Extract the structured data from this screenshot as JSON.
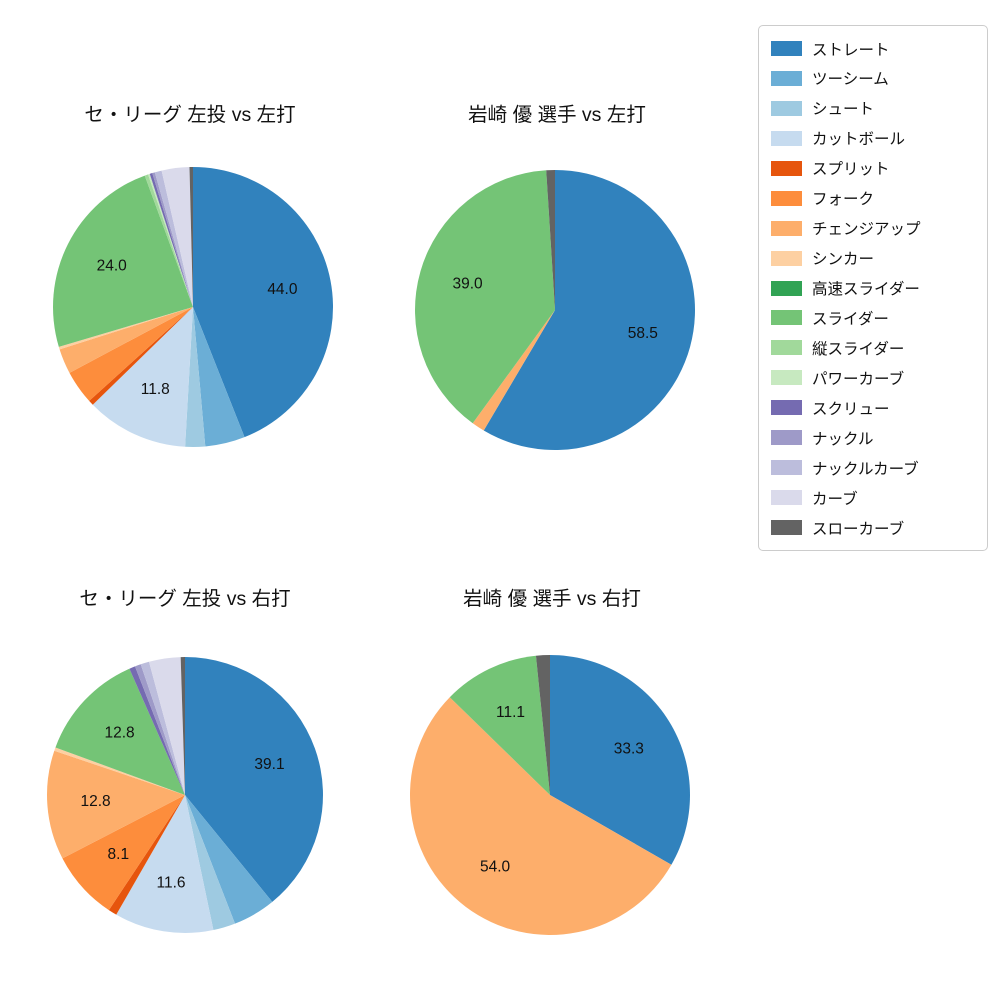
{
  "pitch_types": [
    {
      "label": "ストレート",
      "color": "#3182bd"
    },
    {
      "label": "ツーシーム",
      "color": "#6baed6"
    },
    {
      "label": "シュート",
      "color": "#9ecae1"
    },
    {
      "label": "カットボール",
      "color": "#c6dbef"
    },
    {
      "label": "スプリット",
      "color": "#e6550d"
    },
    {
      "label": "フォーク",
      "color": "#fd8d3c"
    },
    {
      "label": "チェンジアップ",
      "color": "#fdae6b"
    },
    {
      "label": "シンカー",
      "color": "#fdd0a2"
    },
    {
      "label": "高速スライダー",
      "color": "#31a354"
    },
    {
      "label": "スライダー",
      "color": "#74c476"
    },
    {
      "label": "縦スライダー",
      "color": "#a1d99b"
    },
    {
      "label": "パワーカーブ",
      "color": "#c7e9c0"
    },
    {
      "label": "スクリュー",
      "color": "#756bb1"
    },
    {
      "label": "ナックル",
      "color": "#9e9ac8"
    },
    {
      "label": "ナックルカーブ",
      "color": "#bcbddc"
    },
    {
      "label": "カーブ",
      "color": "#dadaeb"
    },
    {
      "label": "スローカーブ",
      "color": "#636363"
    }
  ],
  "chart_data": {
    "type": "pie",
    "legend_position": "top-right",
    "start_angle_deg_from_top": 0,
    "direction": "clockwise",
    "charts": [
      {
        "title": "セ・リーグ 左投 vs 左打",
        "slices": [
          {
            "name": "ストレート",
            "value": 44.0,
            "label": "44.0"
          },
          {
            "name": "ツーシーム",
            "value": 4.6
          },
          {
            "name": "シュート",
            "value": 2.3
          },
          {
            "name": "カットボール",
            "value": 11.8,
            "label": "11.8"
          },
          {
            "name": "スプリット",
            "value": 0.6
          },
          {
            "name": "フォーク",
            "value": 3.9
          },
          {
            "name": "チェンジアップ",
            "value": 2.9
          },
          {
            "name": "シンカー",
            "value": 0.3
          },
          {
            "name": "スライダー",
            "value": 24.0,
            "label": "24.0"
          },
          {
            "name": "縦スライダー",
            "value": 0.4
          },
          {
            "name": "パワーカーブ",
            "value": 0.2
          },
          {
            "name": "スクリュー",
            "value": 0.3
          },
          {
            "name": "ナックル",
            "value": 0.3
          },
          {
            "name": "ナックルカーブ",
            "value": 0.8
          },
          {
            "name": "カーブ",
            "value": 3.2
          },
          {
            "name": "スローカーブ",
            "value": 0.4
          }
        ]
      },
      {
        "title": "岩崎 優 選手 vs 左打",
        "slices": [
          {
            "name": "ストレート",
            "value": 58.5,
            "label": "58.5"
          },
          {
            "name": "チェンジアップ",
            "value": 1.5
          },
          {
            "name": "スライダー",
            "value": 39.0,
            "label": "39.0"
          },
          {
            "name": "スローカーブ",
            "value": 1.0
          }
        ]
      },
      {
        "title": "セ・リーグ 左投 vs 右打",
        "slices": [
          {
            "name": "ストレート",
            "value": 39.1,
            "label": "39.1"
          },
          {
            "name": "ツーシーム",
            "value": 5.0
          },
          {
            "name": "シュート",
            "value": 2.6
          },
          {
            "name": "カットボール",
            "value": 11.6,
            "label": "11.6"
          },
          {
            "name": "スプリット",
            "value": 1.0
          },
          {
            "name": "フォーク",
            "value": 8.1,
            "label": "8.1"
          },
          {
            "name": "チェンジアップ",
            "value": 12.8,
            "label": "12.8"
          },
          {
            "name": "シンカー",
            "value": 0.4
          },
          {
            "name": "スライダー",
            "value": 12.8,
            "label": "12.8"
          },
          {
            "name": "スクリュー",
            "value": 0.7
          },
          {
            "name": "ナックル",
            "value": 0.7
          },
          {
            "name": "ナックルカーブ",
            "value": 1.0
          },
          {
            "name": "カーブ",
            "value": 3.7
          },
          {
            "name": "スローカーブ",
            "value": 0.5
          }
        ]
      },
      {
        "title": "岩崎 優 選手 vs 右打",
        "slices": [
          {
            "name": "ストレート",
            "value": 33.3,
            "label": "33.3"
          },
          {
            "name": "チェンジアップ",
            "value": 54.0,
            "label": "54.0"
          },
          {
            "name": "スライダー",
            "value": 11.1,
            "label": "11.1"
          },
          {
            "name": "スローカーブ",
            "value": 1.6
          }
        ]
      }
    ]
  }
}
